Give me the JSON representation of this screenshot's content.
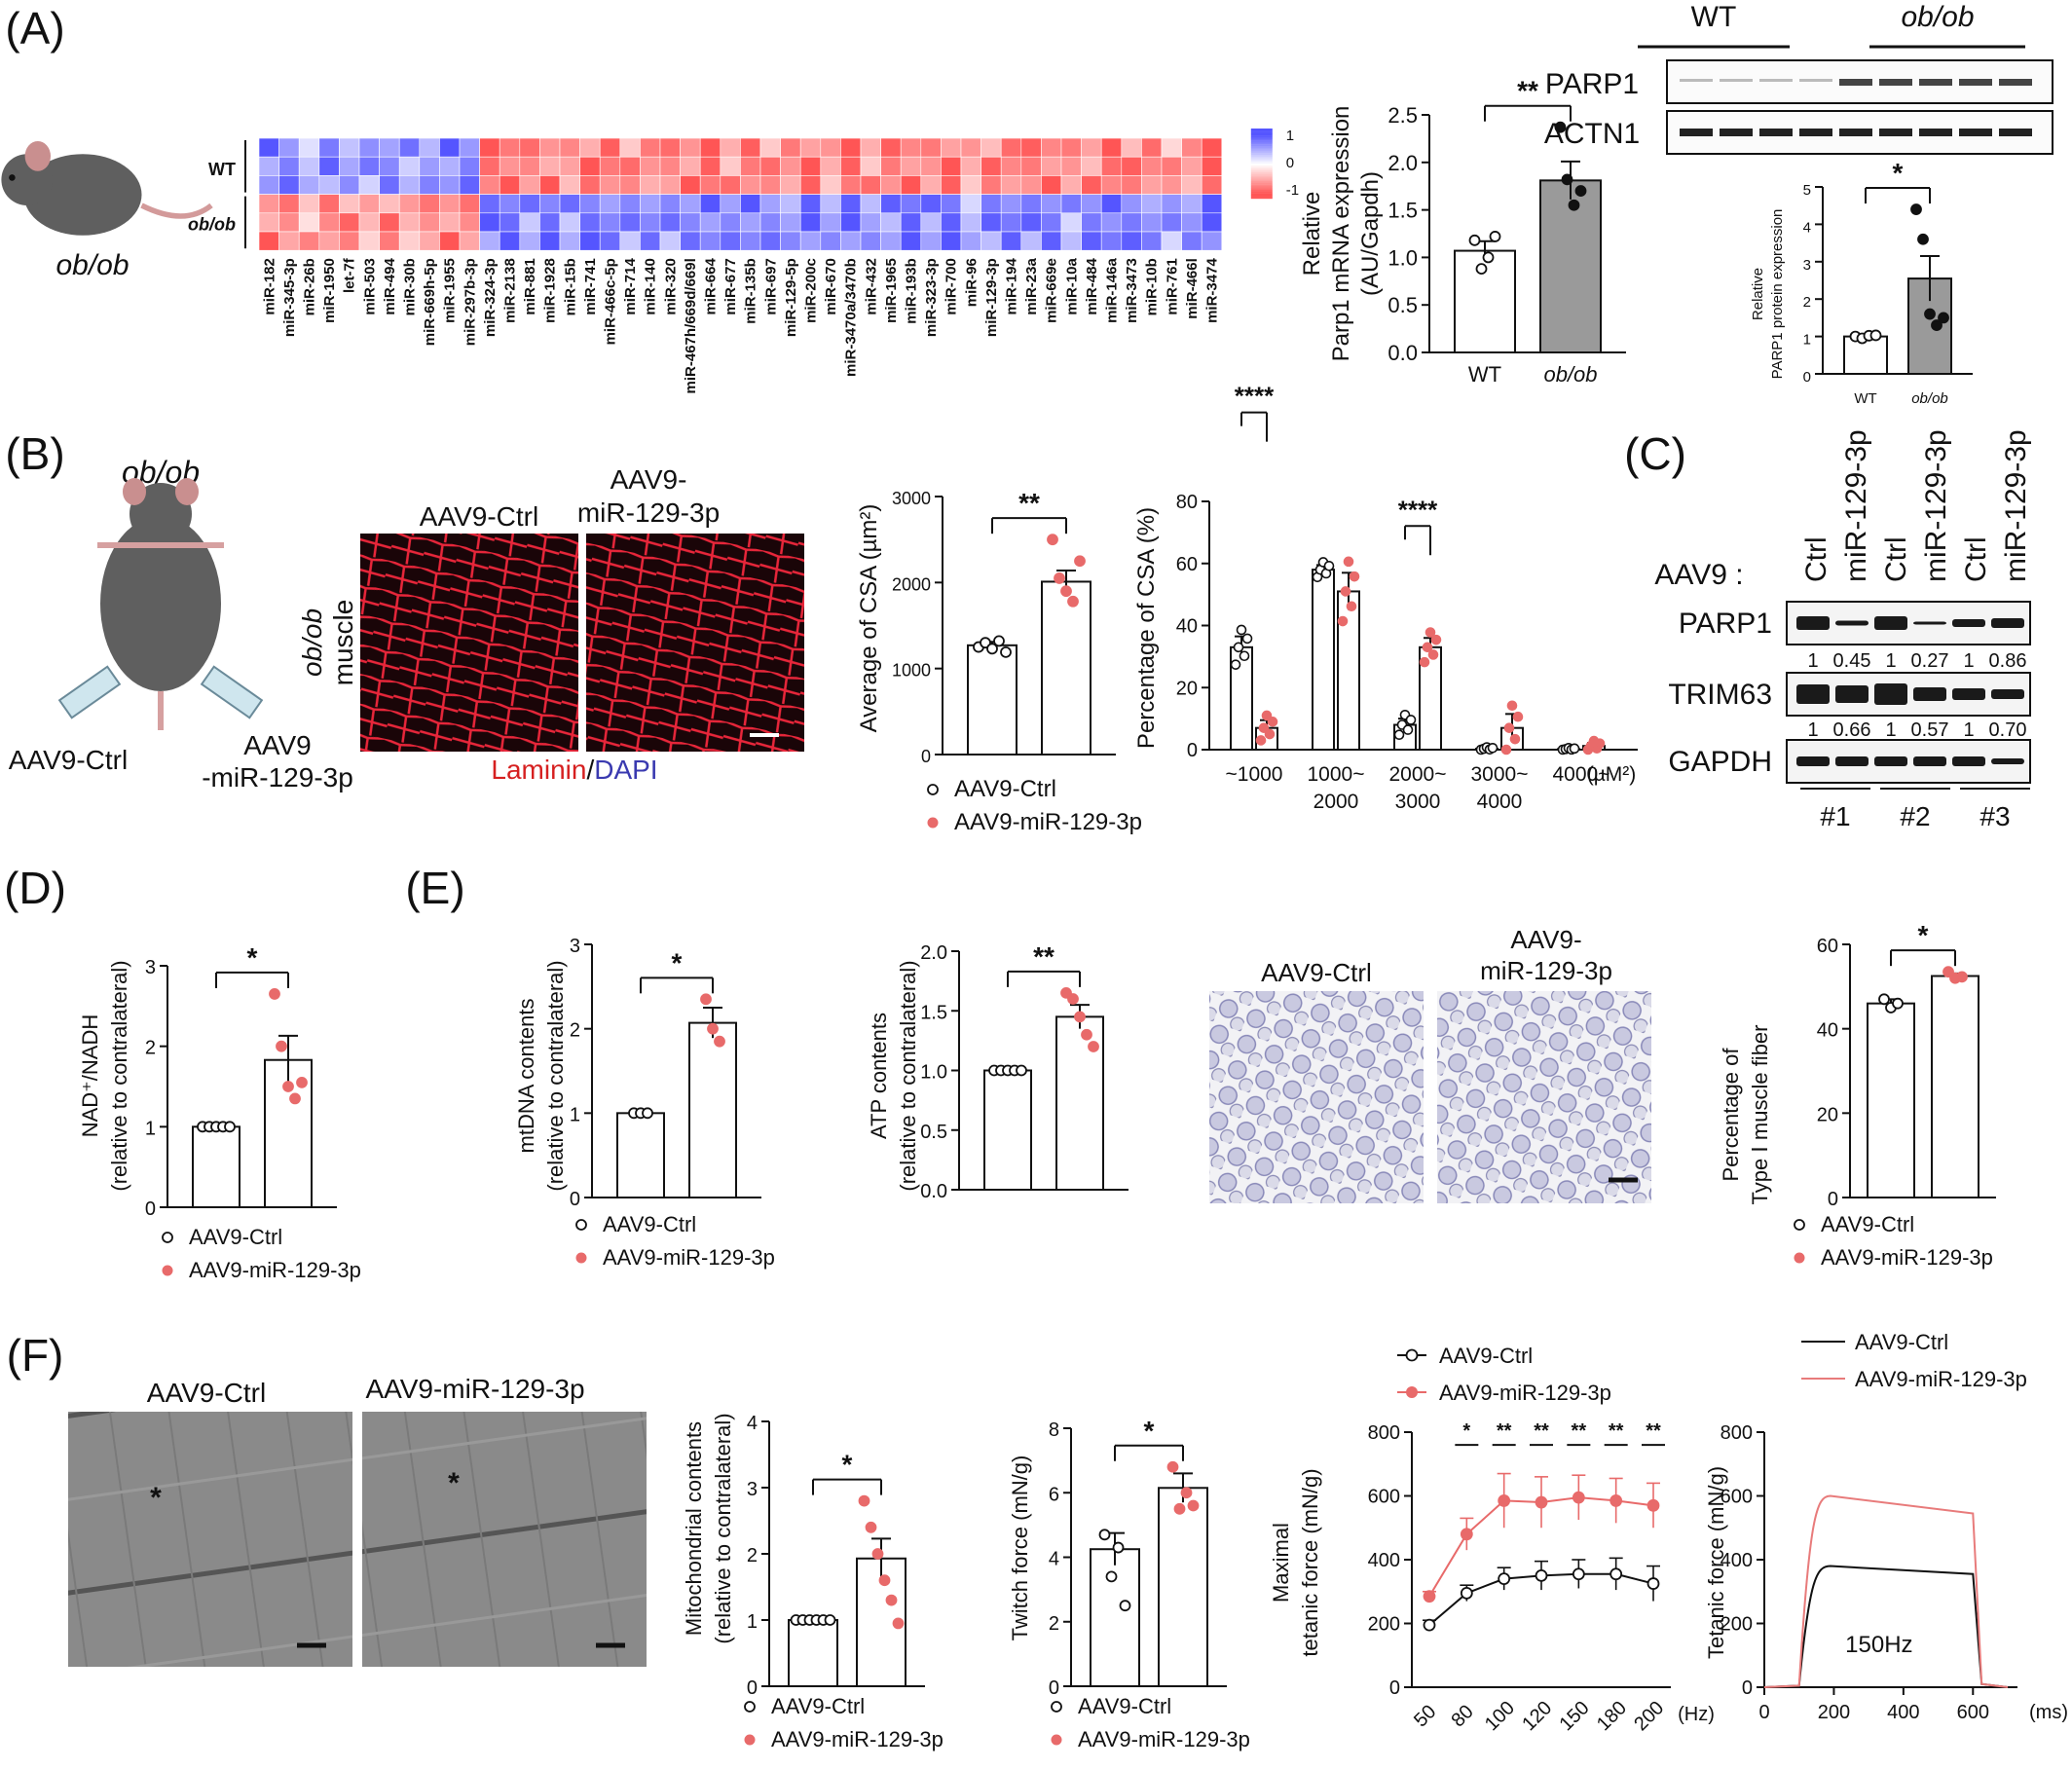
{
  "panels": {
    "A": "(A)",
    "B": "(B)",
    "C": "(C)",
    "D": "(D)",
    "E": "(E)",
    "F": "(F)"
  },
  "colors": {
    "ctrl": "#ffffff",
    "treat": "#e87b7b",
    "red_dot": "#e86a6a",
    "wt_bar": "#ffffff",
    "obob_bar": "#9a9a9a"
  },
  "A": {
    "mouse_label": "ob/ob",
    "row_group_wt": "WT",
    "row_group_obob": "ob/ob",
    "highlight_mirna": "miR-129-3p",
    "colorbar_ticks": [
      "1",
      "0",
      "-1"
    ],
    "mirnas": [
      "miR-182",
      "miR-345-3p",
      "miR-26b",
      "miR-1950",
      "let-7f",
      "miR-503",
      "miR-494",
      "miR-30b",
      "miR-669h-5p",
      "miR-1955",
      "miR-297b-3p",
      "miR-324-3p",
      "miR-2138",
      "miR-881",
      "miR-1928",
      "miR-15b",
      "miR-741",
      "miR-466c-5p",
      "miR-714",
      "miR-140",
      "miR-320",
      "miR-467h/669d/669l",
      "miR-664",
      "miR-677",
      "miR-135b",
      "miR-697",
      "miR-129-5p",
      "miR-200c",
      "miR-670",
      "miR-3470a/3470b",
      "miR-432",
      "miR-1965",
      "miR-193b",
      "miR-323-3p",
      "miR-700",
      "miR-96",
      "miR-129-3p",
      "miR-194",
      "miR-23a",
      "miR-669e",
      "miR-10a",
      "miR-484",
      "miR-146a",
      "miR-3473",
      "miR-10b",
      "miR-761",
      "miR-466l",
      "miR-3474"
    ],
    "mrna_chart": {
      "ylabel_1": "Relative",
      "ylabel_2": "Parp1 mRNA expression",
      "ylabel_3": "(AU/Gapdh)",
      "sig": "**",
      "categories": [
        "WT",
        "ob/ob"
      ],
      "values": [
        1.07,
        1.81
      ],
      "sem": [
        0.1,
        0.2
      ],
      "points": [
        [
          1.18,
          0.88,
          1.0,
          1.22
        ],
        [
          2.37,
          1.82,
          1.55,
          1.7
        ]
      ],
      "ylim": [
        0,
        2.5
      ],
      "yticks": [
        "0.0",
        "0.5",
        "1.0",
        "1.5",
        "2.0",
        "2.5"
      ]
    },
    "blot": {
      "groups": [
        "WT",
        "ob/ob"
      ],
      "rows": [
        "PARP1",
        "ACTN1"
      ]
    },
    "protein_chart": {
      "ylabel_1": "Relative",
      "ylabel_2": "PARP1 protein expression",
      "sig": "*",
      "categories": [
        "WT",
        "ob/ob"
      ],
      "values": [
        1.0,
        2.55
      ],
      "sem": [
        0.05,
        0.6
      ],
      "points": [
        [
          1.0,
          0.95,
          1.02,
          1.03
        ],
        [
          4.4,
          3.6,
          1.6,
          1.3,
          1.5
        ]
      ],
      "ylim": [
        0,
        5
      ],
      "yticks": [
        "0",
        "1",
        "2",
        "3",
        "4",
        "5"
      ]
    }
  },
  "B": {
    "mouse_label": "ob/ob",
    "inj_left": "AAV9-Ctrl",
    "inj_right_1": "AAV9",
    "inj_right_2": "-miR-129-3p",
    "img_title_ctrl": "AAV9-Ctrl",
    "img_title_treat_1": "AAV9-",
    "img_title_treat_2": "miR-129-3p",
    "side_label_1": "ob/ob",
    "side_label_2": "muscle",
    "stain_1": "Laminin",
    "stain_sep": "/",
    "stain_2": "DAPI",
    "csa_avg": {
      "ylabel": "Average of CSA  (µm²)",
      "sig": "**",
      "values": [
        1270,
        2010
      ],
      "sem": [
        40,
        130
      ],
      "points": [
        [
          1250,
          1300,
          1230,
          1320,
          1190
        ],
        [
          2500,
          2050,
          1900,
          1780,
          2250
        ]
      ],
      "ylim": [
        0,
        3000
      ],
      "yticks": [
        "0",
        "1000",
        "2000",
        "3000"
      ]
    },
    "csa_dist": {
      "ylabel": "Percentage of CSA (%)",
      "categories": [
        "~1000",
        "1000~2000",
        "2000~3000",
        "3000~4000",
        "4000~"
      ],
      "cat_line1": [
        "~1000",
        "1000~",
        "2000~",
        "3000~",
        "4000~"
      ],
      "cat_line2": [
        "",
        "2000",
        "3000",
        "4000",
        ""
      ],
      "unit": "(µM²)",
      "series": [
        {
          "values": [
            33,
            58,
            8,
            0.3,
            0.2
          ]
        },
        {
          "values": [
            7,
            51,
            33,
            7,
            1.2
          ]
        }
      ],
      "sem": [
        [
          3.5,
          1.5,
          2,
          0.3,
          0.2
        ],
        [
          2.5,
          6,
          3,
          4.5,
          1
        ]
      ],
      "sig_groups": [
        0,
        2
      ],
      "sig": "****",
      "ylim": [
        0,
        80
      ],
      "yticks": [
        "0",
        "20",
        "40",
        "60",
        "80"
      ]
    },
    "legend": [
      "AAV9-Ctrl",
      "AAV9-miR-129-3p"
    ]
  },
  "C": {
    "header": "AAV9 :",
    "lanes": [
      "Ctrl",
      "miR-129-3p",
      "Ctrl",
      "miR-129-3p",
      "Ctrl",
      "miR-129-3p"
    ],
    "rows": [
      "PARP1",
      "TRIM63",
      "GAPDH"
    ],
    "parp1_q": [
      "1",
      "0.45",
      "1",
      "0.27",
      "1",
      "0.86"
    ],
    "trim63_q": [
      "1",
      "0.66",
      "1",
      "0.57",
      "1",
      "0.70"
    ],
    "replicates": [
      "#1",
      "#2",
      "#3"
    ]
  },
  "D": {
    "ylabel_1": "NAD⁺/NADH",
    "ylabel_2": "(relative to contralateral)",
    "sig": "*",
    "values": [
      1.0,
      1.83
    ],
    "sem": [
      0.01,
      0.3
    ],
    "points": [
      [
        1,
        1,
        1,
        1,
        1
      ],
      [
        2.65,
        2.0,
        1.5,
        1.35,
        1.55
      ]
    ],
    "ylim": [
      0,
      3
    ],
    "yticks": [
      "0",
      "1",
      "2",
      "3"
    ],
    "legend": [
      "AAV9-Ctrl",
      "AAV9-miR-129-3p"
    ]
  },
  "E": {
    "mtdna": {
      "ylabel_1": "mtDNA contents",
      "ylabel_2": "(relative to contralateral)",
      "sig": "*",
      "values": [
        1.0,
        2.07
      ],
      "sem": [
        0.01,
        0.18
      ],
      "points": [
        [
          1,
          1,
          1
        ],
        [
          2.35,
          2.0,
          1.85
        ]
      ],
      "ylim": [
        0,
        3
      ],
      "yticks": [
        "0",
        "1",
        "2",
        "3"
      ]
    },
    "atp": {
      "ylabel_1": "ATP contents",
      "ylabel_2": "(relative to contralateral)",
      "sig": "**",
      "values": [
        1.0,
        1.45
      ],
      "sem": [
        0.01,
        0.1
      ],
      "points": [
        [
          1,
          1,
          1,
          1,
          1
        ],
        [
          1.65,
          1.6,
          1.45,
          1.3,
          1.2
        ]
      ],
      "ylim": [
        0,
        2
      ],
      "yticks": [
        "0.0",
        "0.5",
        "1.0",
        "1.5",
        "2.0"
      ]
    },
    "img_title_ctrl": "AAV9-Ctrl",
    "img_title_treat_1": "AAV9-",
    "img_title_treat_2": "miR-129-3p",
    "type1": {
      "ylabel_1": "Percentage of",
      "ylabel_2": "Type Ⅰ muscle fiber",
      "sig": "*",
      "values": [
        46,
        52.5
      ],
      "sem": [
        1,
        0.6
      ],
      "points": [
        [
          47,
          45,
          46
        ],
        [
          53.5,
          52,
          52.3
        ]
      ],
      "ylim": [
        0,
        60
      ],
      "yticks": [
        "0",
        "20",
        "40",
        "60"
      ]
    },
    "legend": [
      "AAV9-Ctrl",
      "AAV9-miR-129-3p"
    ]
  },
  "F": {
    "img_title_ctrl": "AAV9-Ctrl",
    "img_title_treat": "AAV9-miR-129-3p",
    "mito": {
      "ylabel_1": "Mitochondrial contents",
      "ylabel_2": "(relative to contralateral)",
      "sig": "*",
      "values": [
        1.0,
        1.93
      ],
      "sem": [
        0.01,
        0.3
      ],
      "points": [
        [
          1,
          1,
          1,
          1,
          1,
          1
        ],
        [
          2.8,
          2.4,
          2.0,
          1.6,
          1.3,
          0.95
        ]
      ],
      "ylim": [
        0,
        4
      ],
      "yticks": [
        "0",
        "1",
        "2",
        "3",
        "4"
      ]
    },
    "twitch": {
      "ylabel": "Twitch force  (mN/g)",
      "sig": "*",
      "values": [
        4.25,
        6.15
      ],
      "sem": [
        0.5,
        0.45
      ],
      "points": [
        [
          4.7,
          3.4,
          4.3,
          2.5
        ],
        [
          6.8,
          5.5,
          6.0,
          5.6
        ]
      ],
      "ylim": [
        0,
        8
      ],
      "yticks": [
        "0",
        "2",
        "4",
        "6",
        "8"
      ]
    },
    "tetanic": {
      "ylabel_1": "Maximal",
      "ylabel_2": "tetanic force (mN/g)",
      "x": [
        "50",
        "80",
        "100",
        "120",
        "150",
        "180",
        "200"
      ],
      "unit": "(Hz)",
      "series": [
        {
          "name": "AAV9-Ctrl",
          "values": [
            195,
            295,
            340,
            350,
            355,
            355,
            325
          ],
          "sem": [
            15,
            25,
            35,
            45,
            45,
            50,
            55
          ]
        },
        {
          "name": "AAV9-miR-129-3p",
          "values": [
            285,
            480,
            585,
            580,
            595,
            585,
            570
          ],
          "sem": [
            15,
            50,
            85,
            80,
            70,
            70,
            70
          ]
        }
      ],
      "sig": [
        "*",
        "**",
        "**",
        "**",
        "**",
        "**"
      ],
      "ylim": [
        0,
        800
      ],
      "yticks": [
        "0",
        "200",
        "400",
        "600",
        "800"
      ]
    },
    "trace": {
      "ylabel": "Tetanic force (mN/g)",
      "xticks": [
        "0",
        "200",
        "400",
        "600"
      ],
      "xunit": "(ms)",
      "yticks": [
        "0",
        "200",
        "400",
        "600",
        "800"
      ],
      "annotation": "150Hz",
      "series": [
        {
          "name": "AAV9-Ctrl",
          "plateau": 360
        },
        {
          "name": "AAV9-miR-129-3p",
          "plateau": 560
        }
      ]
    },
    "legend": [
      "AAV9-Ctrl",
      "AAV9-miR-129-3p"
    ]
  }
}
